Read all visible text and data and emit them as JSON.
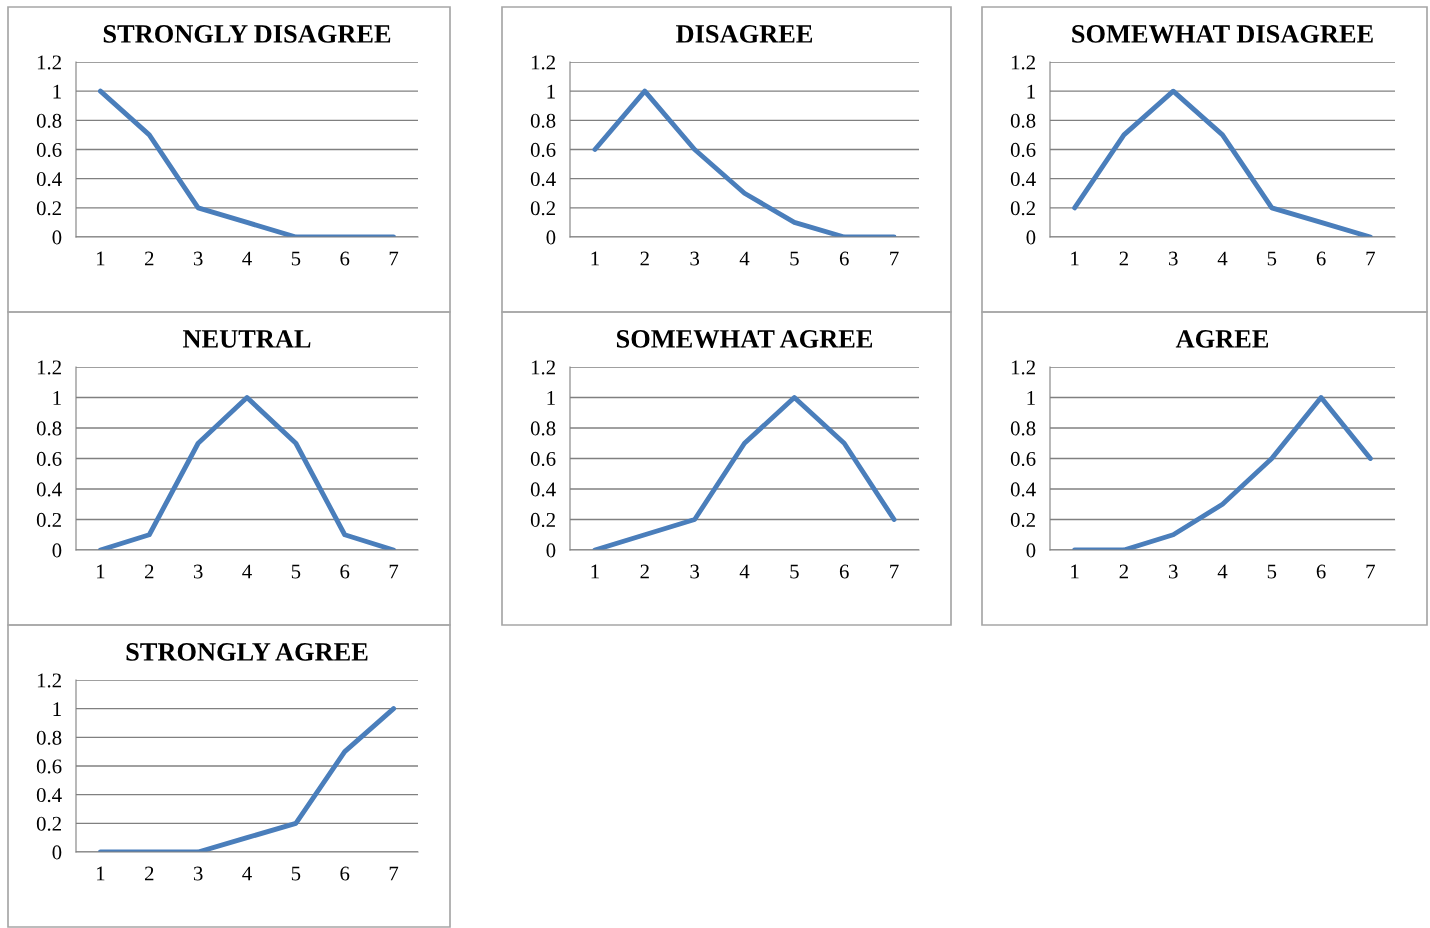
{
  "chart_data": [
    {
      "type": "line",
      "title": "STRONGLY DISAGREE",
      "categories": [
        "1",
        "2",
        "3",
        "4",
        "5",
        "6",
        "7"
      ],
      "series": [
        {
          "color": "#4a7ebb",
          "values": [
            1,
            0.7,
            0.2,
            0.1,
            0,
            0,
            0
          ]
        }
      ],
      "ylim": [
        0,
        1.2
      ],
      "yticks": [
        0,
        0.2,
        0.4,
        0.6,
        0.8,
        1,
        1.2
      ],
      "grid": "y"
    },
    {
      "type": "line",
      "title": "DISAGREE",
      "categories": [
        "1",
        "2",
        "3",
        "4",
        "5",
        "6",
        "7"
      ],
      "series": [
        {
          "color": "#4a7ebb",
          "values": [
            0.6,
            1,
            0.6,
            0.3,
            0.1,
            0,
            0
          ]
        }
      ],
      "ylim": [
        0,
        1.2
      ],
      "yticks": [
        0,
        0.2,
        0.4,
        0.6,
        0.8,
        1,
        1.2
      ],
      "grid": "y"
    },
    {
      "type": "line",
      "title": "SOMEWHAT DISAGREE",
      "categories": [
        "1",
        "2",
        "3",
        "4",
        "5",
        "6",
        "7"
      ],
      "series": [
        {
          "color": "#4a7ebb",
          "values": [
            0.2,
            0.7,
            1,
            0.7,
            0.2,
            0.1,
            0
          ]
        }
      ],
      "ylim": [
        0,
        1.2
      ],
      "yticks": [
        0,
        0.2,
        0.4,
        0.6,
        0.8,
        1,
        1.2
      ],
      "grid": "y"
    },
    {
      "type": "line",
      "title": "NEUTRAL",
      "categories": [
        "1",
        "2",
        "3",
        "4",
        "5",
        "6",
        "7"
      ],
      "series": [
        {
          "color": "#4a7ebb",
          "values": [
            0,
            0.1,
            0.7,
            1,
            0.7,
            0.1,
            0
          ]
        }
      ],
      "ylim": [
        0,
        1.2
      ],
      "yticks": [
        0,
        0.2,
        0.4,
        0.6,
        0.8,
        1,
        1.2
      ],
      "grid": "y"
    },
    {
      "type": "line",
      "title": "SOMEWHAT AGREE",
      "categories": [
        "1",
        "2",
        "3",
        "4",
        "5",
        "6",
        "7"
      ],
      "series": [
        {
          "color": "#4a7ebb",
          "values": [
            0,
            0.1,
            0.2,
            0.7,
            1,
            0.7,
            0.2
          ]
        }
      ],
      "ylim": [
        0,
        1.2
      ],
      "yticks": [
        0,
        0.2,
        0.4,
        0.6,
        0.8,
        1,
        1.2
      ],
      "grid": "y"
    },
    {
      "type": "line",
      "title": "AGREE",
      "categories": [
        "1",
        "2",
        "3",
        "4",
        "5",
        "6",
        "7"
      ],
      "series": [
        {
          "color": "#4a7ebb",
          "values": [
            0,
            0,
            0.1,
            0.3,
            0.6,
            1,
            0.6
          ]
        }
      ],
      "ylim": [
        0,
        1.2
      ],
      "yticks": [
        0,
        0.2,
        0.4,
        0.6,
        0.8,
        1,
        1.2
      ],
      "grid": "y"
    },
    {
      "type": "line",
      "title": "STRONGLY AGREE",
      "categories": [
        "1",
        "2",
        "3",
        "4",
        "5",
        "6",
        "7"
      ],
      "series": [
        {
          "color": "#4a7ebb",
          "values": [
            0,
            0,
            0,
            0.1,
            0.2,
            0.7,
            1
          ]
        }
      ],
      "ylim": [
        0,
        1.2
      ],
      "yticks": [
        0,
        0.2,
        0.4,
        0.6,
        0.8,
        1,
        1.2
      ],
      "grid": "y"
    }
  ]
}
